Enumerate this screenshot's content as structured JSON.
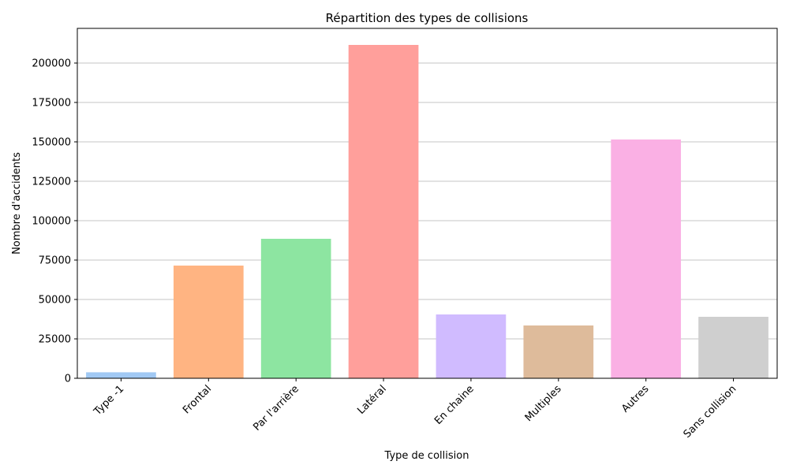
{
  "chart_data": {
    "type": "bar",
    "title": "Répartition des types de collisions",
    "xlabel": "Type de collision",
    "ylabel": "Nombre d'accidents",
    "categories": [
      "Type -1",
      "Frontal",
      "Par l'arrière",
      "Latéral",
      "En chaine",
      "Multiples",
      "Autres",
      "Sans collision"
    ],
    "values": [
      3800,
      71500,
      88500,
      211500,
      40500,
      33500,
      151500,
      39000
    ],
    "colors": [
      "#a1c9f4",
      "#ffb482",
      "#8de5a1",
      "#ff9f9b",
      "#d0bbff",
      "#debb9b",
      "#fab0e4",
      "#cfcfcf"
    ],
    "ylim": [
      0,
      222000
    ],
    "yticks": [
      0,
      25000,
      50000,
      75000,
      100000,
      125000,
      150000,
      175000,
      200000
    ],
    "ytick_labels": [
      "0",
      "25000",
      "50000",
      "75000",
      "100000",
      "125000",
      "150000",
      "175000",
      "200000"
    ],
    "grid": "y",
    "legend": "none"
  }
}
